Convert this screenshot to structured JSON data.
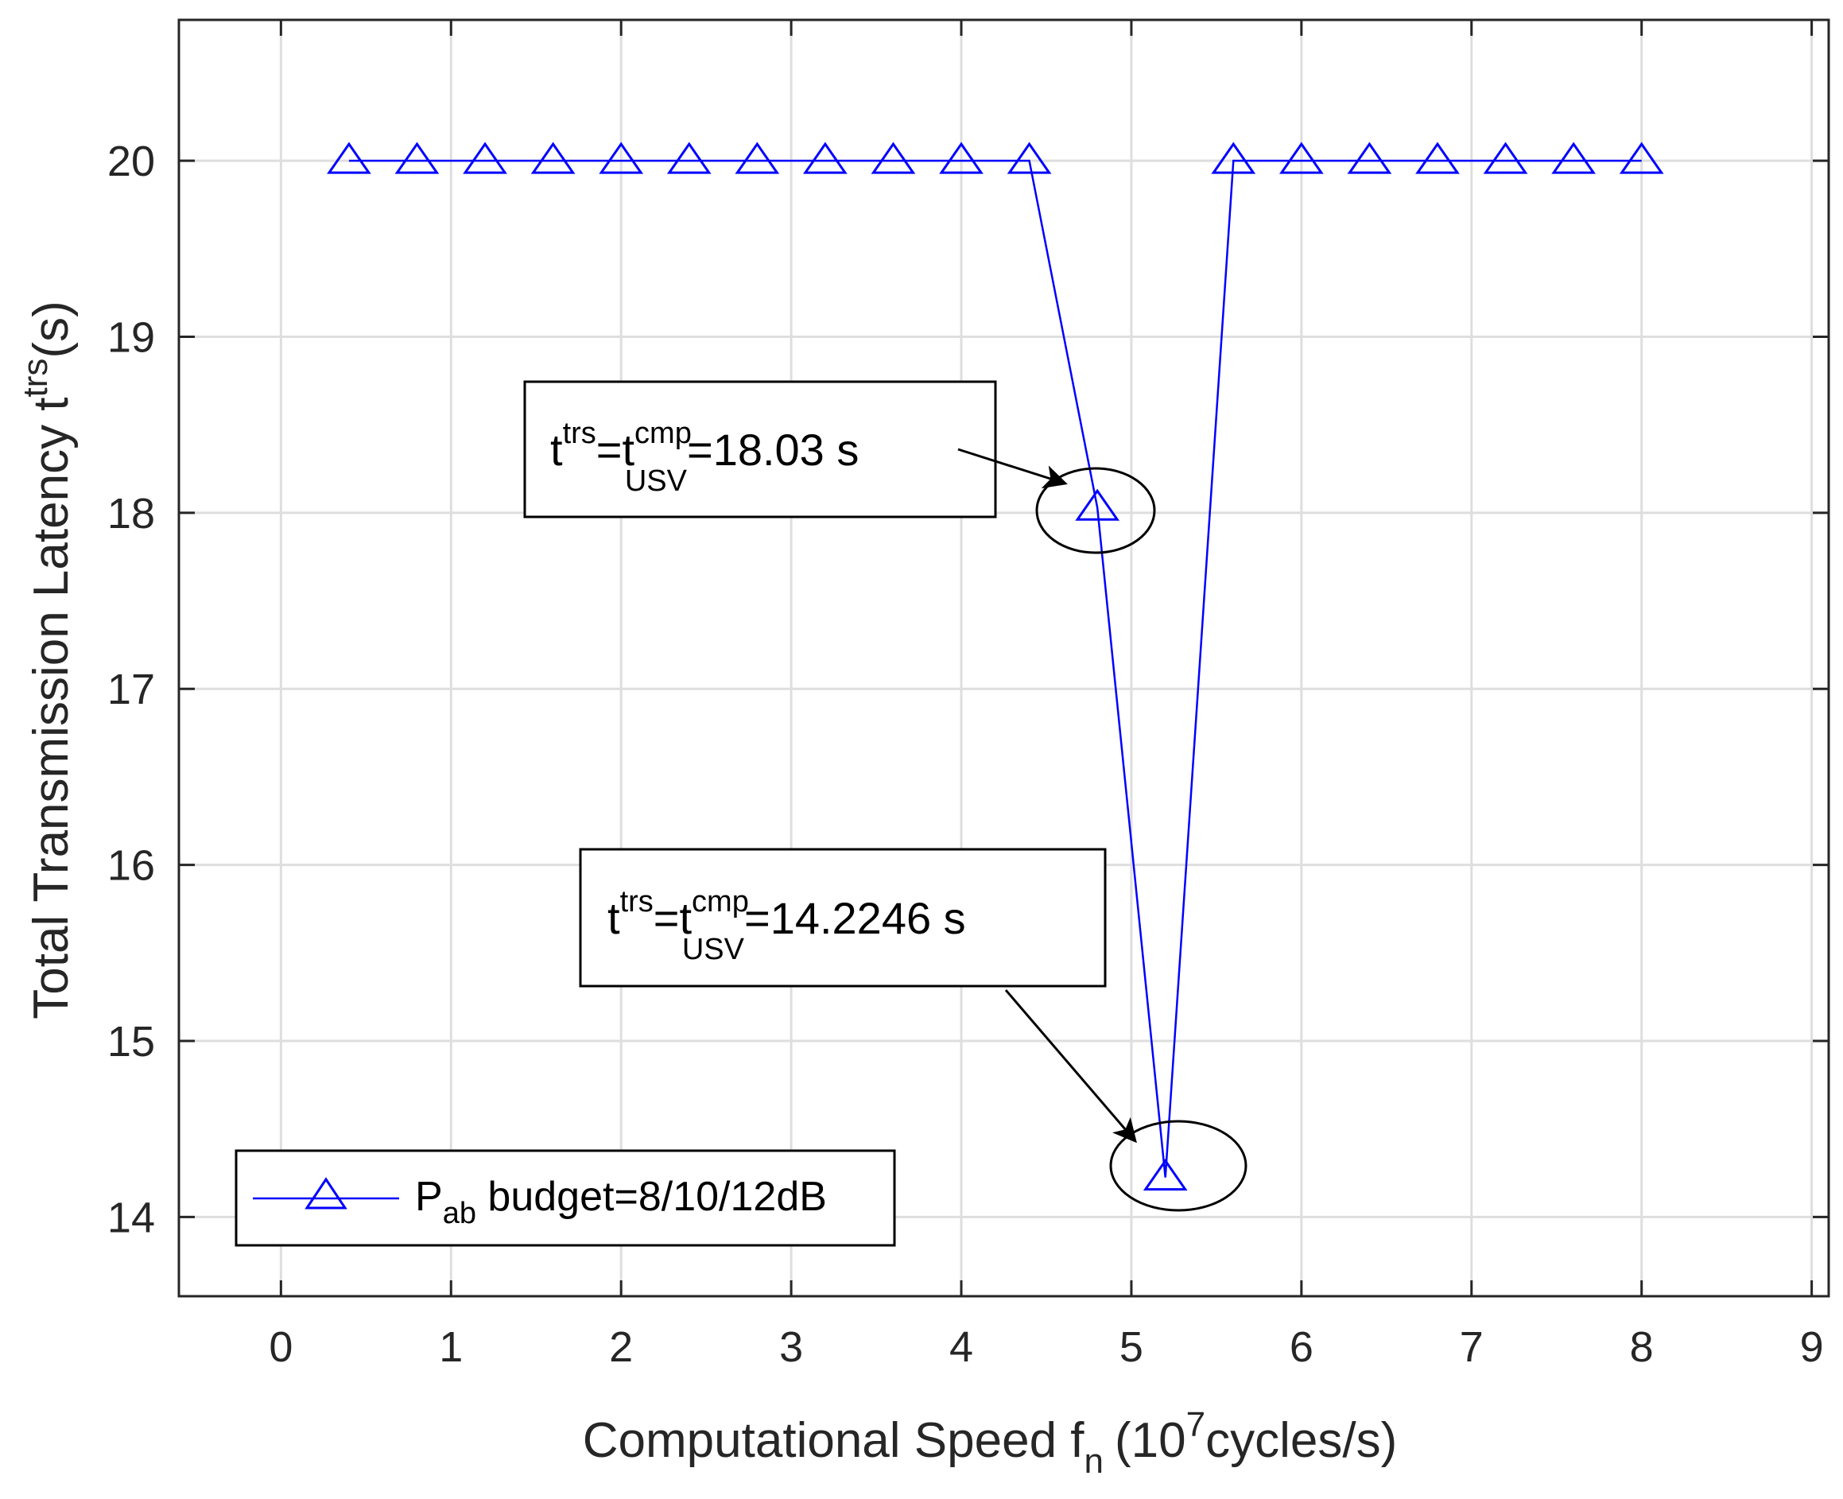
{
  "chart_data": {
    "type": "line",
    "xlabel": "Computational Speed f",
    "xlabel_sub": "n",
    "xlabel_unit_prefix": "(10",
    "xlabel_unit_sup": "7",
    "xlabel_unit_suffix": "cycles/s)",
    "ylabel": "Total Transmission Latency t",
    "ylabel_sup": "trs",
    "ylabel_suffix": "(s)",
    "xlim": [
      -0.6,
      9.1
    ],
    "ylim": [
      13.55,
      20.8
    ],
    "xticks": [
      0,
      1,
      2,
      3,
      4,
      5,
      6,
      7,
      8,
      9
    ],
    "yticks": [
      14,
      15,
      16,
      17,
      18,
      19,
      20
    ],
    "grid": true,
    "series": [
      {
        "name": "P_ab budget=8/10/12dB",
        "color": "#0000ff",
        "marker": "triangle",
        "x": [
          0.4,
          0.8,
          1.2,
          1.6,
          2.0,
          2.4,
          2.8,
          3.2,
          3.6,
          4.0,
          4.4,
          4.8,
          5.2,
          5.6,
          6.0,
          6.4,
          6.8,
          7.2,
          7.6,
          8.0
        ],
        "y": [
          20,
          20,
          20,
          20,
          20,
          20,
          20,
          20,
          20,
          20,
          20,
          18.03,
          14.2246,
          20,
          20,
          20,
          20,
          20,
          20,
          20
        ]
      }
    ],
    "legend": {
      "position": "bottom-left",
      "label_main": "P",
      "label_sub": "ab",
      "label_rest": " budget=8/10/12dB"
    },
    "annotations": [
      {
        "t": "t",
        "sup1": "trs",
        "eq": "=t",
        "sup2": "cmp",
        "sub2": "USV",
        "value": "=18.03 s",
        "target_x": 4.8,
        "target_y": 18.03
      },
      {
        "t": "t",
        "sup1": "trs",
        "eq": "=t",
        "sup2": "cmp",
        "sub2": "USV",
        "value": "=14.2246 s",
        "target_x": 5.2,
        "target_y": 14.2246
      }
    ]
  }
}
